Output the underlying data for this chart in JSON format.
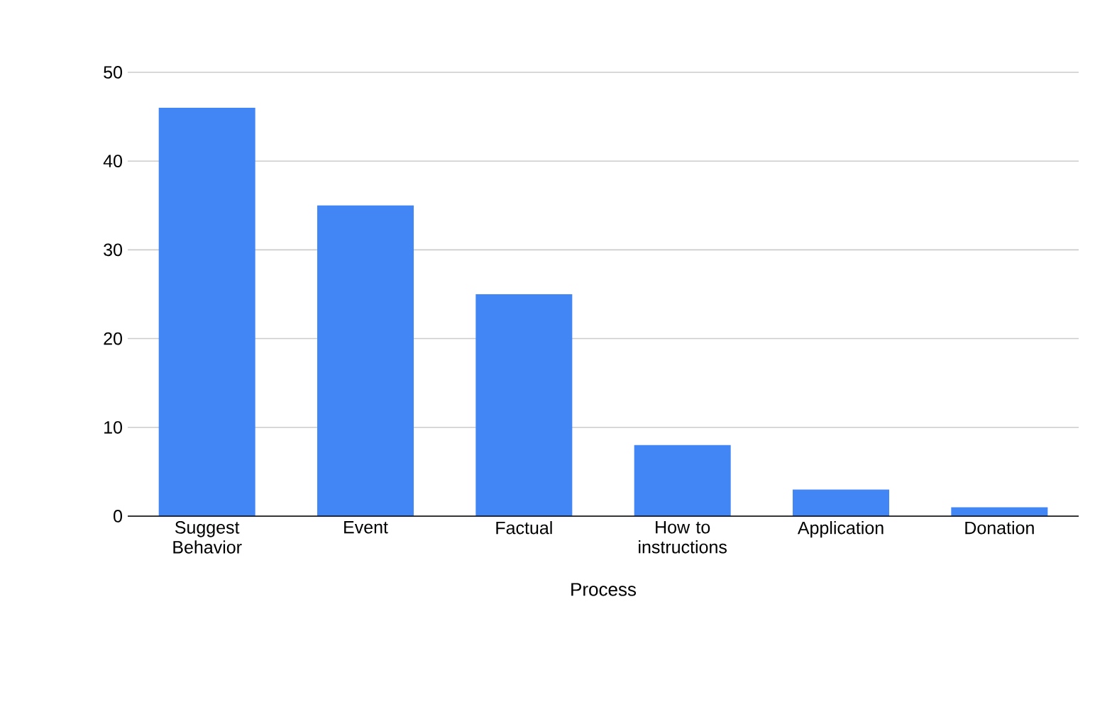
{
  "chart_data": {
    "type": "bar",
    "xlabel": "Process",
    "categories": [
      "Suggest Behavior",
      "Event",
      "Factual",
      "How to instructions",
      "Application",
      "Donation"
    ],
    "values": [
      46,
      35,
      25,
      8,
      3,
      1
    ],
    "color": "#4285f4",
    "ylim": [
      0,
      50
    ],
    "yticks": [
      0,
      10,
      20,
      30,
      40,
      50
    ],
    "grid": "y"
  }
}
